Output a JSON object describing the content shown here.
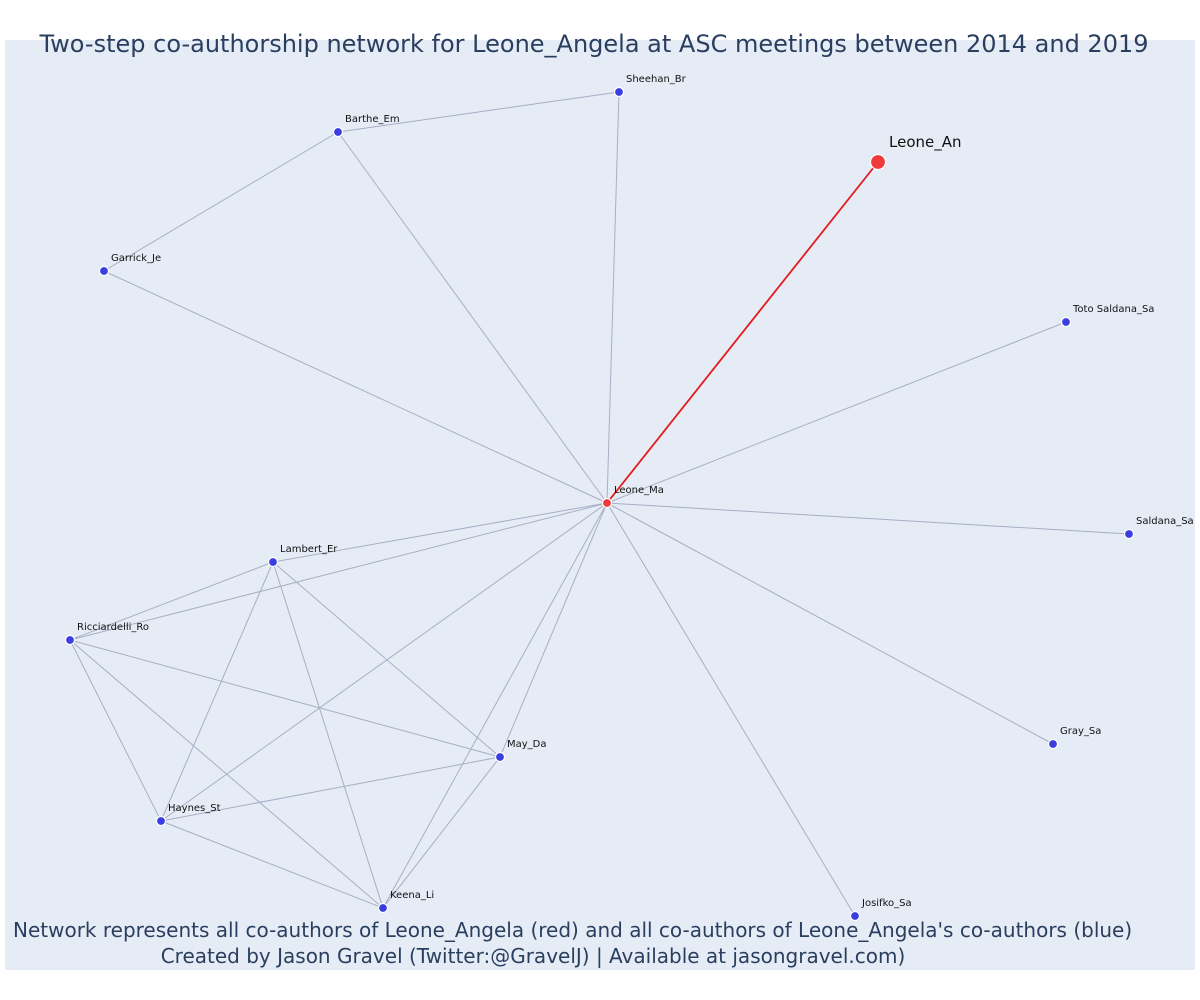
{
  "title": "Two-step co-authorship network for Leone_Angela at ASC meetings between 2014 and 2019",
  "caption": {
    "line1": "Network represents all co-authors of Leone_Angela (red) and all co-authors of Leone_Angela's co-authors (blue)",
    "line2": "Created by Jason Gravel (Twitter:@GravelJ) | Available at jasongravel.com)"
  },
  "colors": {
    "background": "#e5ecf6",
    "edge": "#a9aec4",
    "focal_edge": "#e41a1c",
    "focal_node": "#ef3b3b",
    "coauthor_node": "#ef3b3b",
    "second_step_node": "#3a3ee0",
    "text": "#2a3f5f"
  },
  "nodes": [
    {
      "id": "Leone_An",
      "label": "Leone_An",
      "role": "focal"
    },
    {
      "id": "Leone_Ma",
      "label": "Leone_Ma",
      "role": "coauthor"
    },
    {
      "id": "Sheehan_Br",
      "label": "Sheehan_Br",
      "role": "second-step"
    },
    {
      "id": "Barthe_Em",
      "label": "Barthe_Em",
      "role": "second-step"
    },
    {
      "id": "Garrick_Je",
      "label": "Garrick_Je",
      "role": "second-step"
    },
    {
      "id": "Toto Saldana_Sa",
      "label": "Toto Saldana_Sa",
      "role": "second-step"
    },
    {
      "id": "Saldana_Sa",
      "label": "Saldana_Sa",
      "role": "second-step"
    },
    {
      "id": "Lambert_Er",
      "label": "Lambert_Er",
      "role": "second-step"
    },
    {
      "id": "Ricciardelli_Ro",
      "label": "Ricciardelli_Ro",
      "role": "second-step"
    },
    {
      "id": "May_Da",
      "label": "May_Da",
      "role": "second-step"
    },
    {
      "id": "Gray_Sa",
      "label": "Gray_Sa",
      "role": "second-step"
    },
    {
      "id": "Haynes_St",
      "label": "Haynes_St",
      "role": "second-step"
    },
    {
      "id": "Keena_Li",
      "label": "Keena_Li",
      "role": "second-step"
    },
    {
      "id": "Josifko_Sa",
      "label": "Josifko_Sa",
      "role": "second-step"
    }
  ],
  "edges": [
    {
      "source": "Leone_An",
      "target": "Leone_Ma",
      "focal": true
    },
    {
      "source": "Barthe_Em",
      "target": "Sheehan_Br"
    },
    {
      "source": "Barthe_Em",
      "target": "Garrick_Je"
    },
    {
      "source": "Barthe_Em",
      "target": "Leone_Ma"
    },
    {
      "source": "Sheehan_Br",
      "target": "Leone_Ma"
    },
    {
      "source": "Garrick_Je",
      "target": "Leone_Ma"
    },
    {
      "source": "Toto Saldana_Sa",
      "target": "Leone_Ma"
    },
    {
      "source": "Saldana_Sa",
      "target": "Leone_Ma"
    },
    {
      "source": "Gray_Sa",
      "target": "Leone_Ma"
    },
    {
      "source": "Josifko_Sa",
      "target": "Leone_Ma"
    },
    {
      "source": "Lambert_Er",
      "target": "Leone_Ma"
    },
    {
      "source": "Ricciardelli_Ro",
      "target": "Leone_Ma"
    },
    {
      "source": "Haynes_St",
      "target": "Leone_Ma"
    },
    {
      "source": "Keena_Li",
      "target": "Leone_Ma"
    },
    {
      "source": "May_Da",
      "target": "Leone_Ma"
    },
    {
      "source": "Lambert_Er",
      "target": "Ricciardelli_Ro"
    },
    {
      "source": "Lambert_Er",
      "target": "Haynes_St"
    },
    {
      "source": "Lambert_Er",
      "target": "Keena_Li"
    },
    {
      "source": "Lambert_Er",
      "target": "May_Da"
    },
    {
      "source": "Ricciardelli_Ro",
      "target": "Haynes_St"
    },
    {
      "source": "Ricciardelli_Ro",
      "target": "Keena_Li"
    },
    {
      "source": "Ricciardelli_Ro",
      "target": "May_Da"
    },
    {
      "source": "Haynes_St",
      "target": "May_Da"
    },
    {
      "source": "Haynes_St",
      "target": "Keena_Li"
    },
    {
      "source": "Keena_Li",
      "target": "May_Da"
    }
  ]
}
